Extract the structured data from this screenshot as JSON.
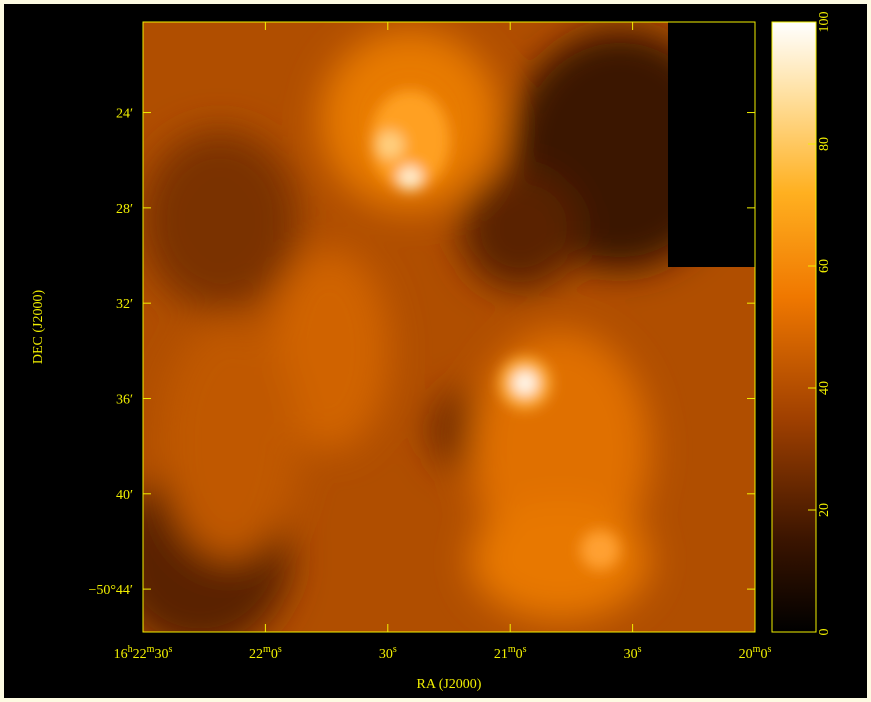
{
  "chart_data": {
    "type": "image",
    "x_label": "RA (J2000)",
    "y_label": "DEC (J2000)",
    "xlim": [
      58950,
      58800
    ],
    "xticks": [
      {
        "value": 58950,
        "label": "16h22m30s"
      },
      {
        "value": 58920,
        "label": "22m0s"
      },
      {
        "value": 58890,
        "label": "30s"
      },
      {
        "value": 58860,
        "label": "21m0s"
      },
      {
        "value": 58830,
        "label": "30s"
      },
      {
        "value": 58800,
        "label": "20m0s"
      }
    ],
    "ylim": [
      -3045.8,
      -3020.2
    ],
    "yticks": [
      {
        "value": -3044,
        "label": "−50°44′"
      },
      {
        "value": -3040,
        "label": "40′"
      },
      {
        "value": -3036,
        "label": "36′"
      },
      {
        "value": -3032,
        "label": "32′"
      },
      {
        "value": -3028,
        "label": "28′"
      },
      {
        "value": -3024,
        "label": "24′"
      }
    ],
    "colorbar": {
      "lim": [
        0,
        100
      ],
      "ticks": [
        0,
        20,
        40,
        60,
        80,
        100
      ]
    }
  }
}
